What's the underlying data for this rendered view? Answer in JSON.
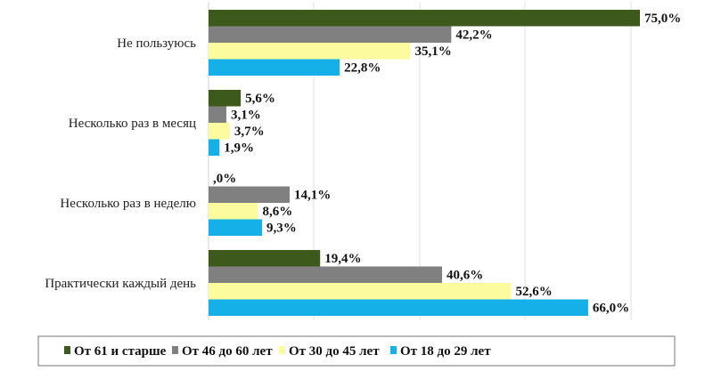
{
  "chart_data": {
    "type": "bar",
    "orientation": "horizontal",
    "title": "",
    "xlabel": "",
    "ylabel": "",
    "categories": [
      "Не пользуюсь",
      "Несколько раз в месяц",
      "Несколько раз в неделю",
      "Практически каждый день"
    ],
    "series": [
      {
        "name": "От 61 и старше",
        "color": "#3d5a1c",
        "values": [
          75.0,
          5.6,
          0.0,
          19.4
        ],
        "labels": [
          "75,0%",
          "5,6%",
          ",0%",
          "19,4%"
        ]
      },
      {
        "name": "От 46 до 60 лет",
        "color": "#808080",
        "values": [
          42.2,
          3.1,
          14.1,
          40.6
        ],
        "labels": [
          "42,2%",
          "3,1%",
          "14,1%",
          "40,6%"
        ]
      },
      {
        "name": "От 30 до 45 лет",
        "color": "#fcfc9e",
        "values": [
          35.1,
          3.7,
          8.6,
          52.6
        ],
        "labels": [
          "35,1%",
          "3,7%",
          "8,6%",
          "52,6%"
        ]
      },
      {
        "name": "От 18 до 29 лет",
        "color": "#16b0e8",
        "values": [
          22.8,
          1.9,
          9.3,
          66.0
        ],
        "labels": [
          "22,8%",
          "1,9%",
          "9,3%",
          "66,0%"
        ]
      }
    ],
    "grid": true,
    "legend_position": "bottom",
    "axis_tick_labels_visible": false
  }
}
